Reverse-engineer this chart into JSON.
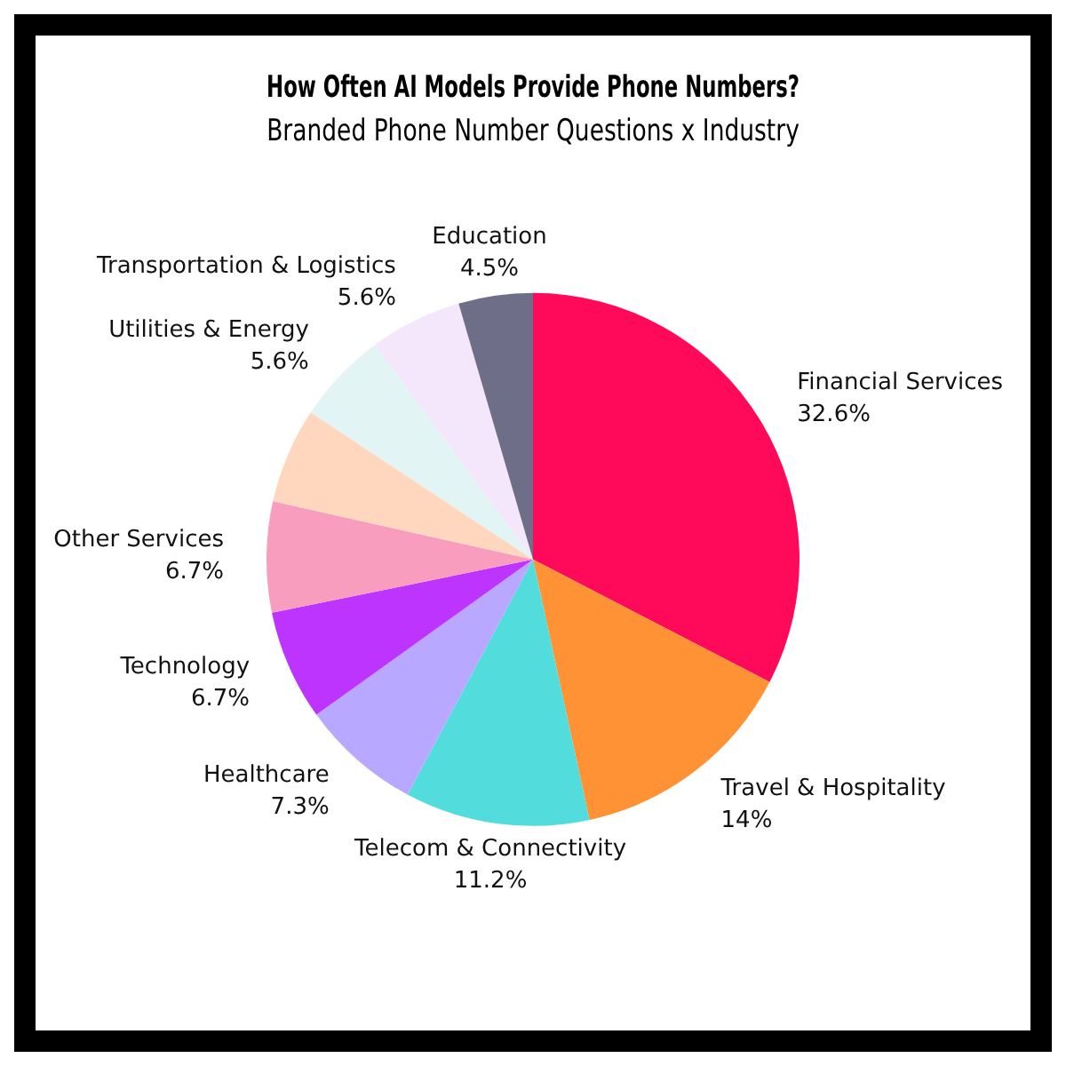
{
  "chart_data": {
    "type": "pie",
    "title": "How Often AI Models Provide Phone Numbers?",
    "subtitle": "Branded Phone Number Questions x Industry",
    "categories": [
      "Financial Services",
      "Travel & Hospitality",
      "Telecom & Connectivity",
      "Healthcare",
      "Technology",
      "Other Services",
      null,
      "Utilities & Energy",
      "Transportation & Logistics",
      "Education"
    ],
    "values": [
      32.6,
      14,
      11.2,
      7.3,
      6.7,
      6.7,
      5.8,
      5.6,
      5.6,
      4.5
    ],
    "value_labels": [
      "32.6%",
      "14%",
      "11.2%",
      "7.3%",
      "6.7%",
      "6.7%",
      null,
      "5.6%",
      "5.6%",
      "4.5%"
    ],
    "colors": [
      "#ff0a5a",
      "#ff9234",
      "#53dcdc",
      "#b9a8ff",
      "#bd34ff",
      "#f89dbd",
      "#ffd7bf",
      "#e2f4f4",
      "#f4e6fb",
      "#6e6e88"
    ],
    "legend": false
  }
}
